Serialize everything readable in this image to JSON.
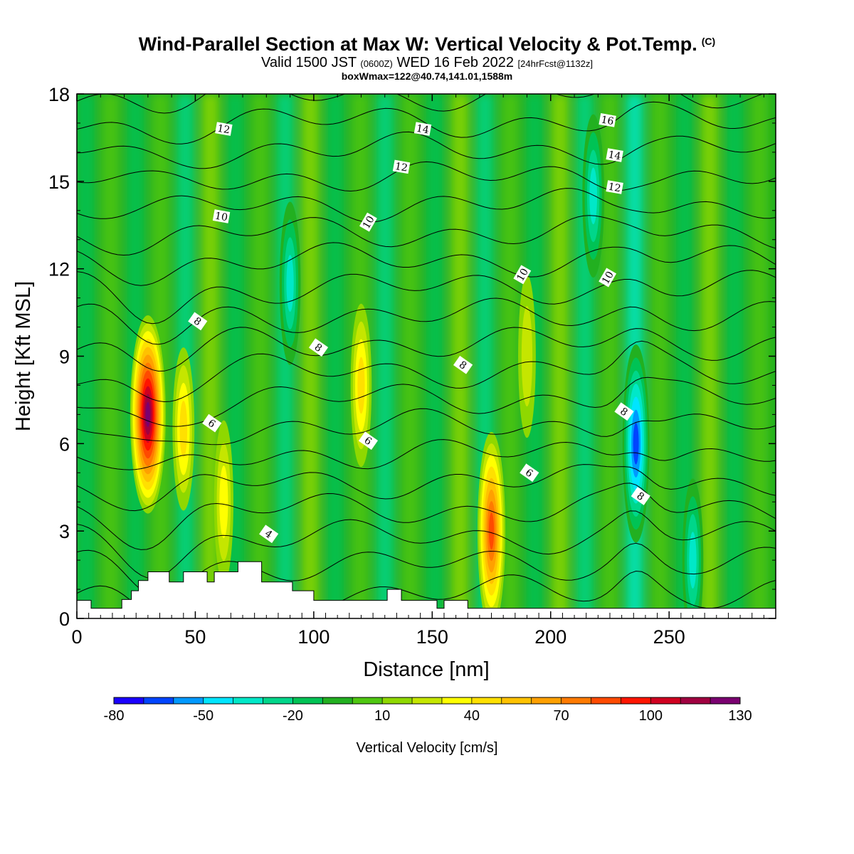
{
  "header": {
    "title": "Wind-Parallel Section at Max W: Vertical Velocity & Pot.Temp.",
    "title_mark": "(C)",
    "valid_prefix": "Valid 1500 JST",
    "valid_utc": "(0600Z)",
    "valid_date": "WED 16 Feb 2022",
    "forecast": "[24hrFcst@1132z]",
    "box_info": "boxWmax=122@40.74,141.01,1588m"
  },
  "chart_data": {
    "type": "heatmap",
    "xlabel": "Distance [nm]",
    "ylabel": "Height [Kft MSL]",
    "xlim": [
      0,
      295
    ],
    "ylim": [
      0,
      18
    ],
    "x_ticks": [
      0,
      50,
      100,
      150,
      200,
      250
    ],
    "y_ticks": [
      0,
      3,
      6,
      9,
      12,
      15,
      18
    ],
    "colorbar": {
      "label": "Vertical Velocity [cm/s]",
      "ticks": [
        -80,
        -50,
        -20,
        10,
        40,
        70,
        100,
        130
      ],
      "bins": [
        -80,
        -70,
        -60,
        -50,
        -40,
        -30,
        -20,
        -10,
        0,
        10,
        20,
        30,
        40,
        50,
        60,
        70,
        80,
        90,
        100,
        110,
        120,
        130
      ],
      "colors": [
        "#1a00ff",
        "#0044ff",
        "#0099ff",
        "#00e5ff",
        "#00e8c8",
        "#00d68a",
        "#00c355",
        "#22b020",
        "#4fc710",
        "#8fd800",
        "#c5e600",
        "#ffff00",
        "#ffe000",
        "#ffc200",
        "#ffa000",
        "#ff7a00",
        "#ff4a00",
        "#ff1500",
        "#d00020",
        "#a00040",
        "#7a0070"
      ]
    },
    "terrain": [
      [
        0,
        0.62
      ],
      [
        6,
        0.62
      ],
      [
        6,
        0.35
      ],
      [
        19,
        0.35
      ],
      [
        19,
        0.65
      ],
      [
        23,
        0.65
      ],
      [
        23,
        0.95
      ],
      [
        26,
        0.95
      ],
      [
        26,
        1.3
      ],
      [
        30,
        1.3
      ],
      [
        30,
        1.6
      ],
      [
        39,
        1.6
      ],
      [
        39,
        1.25
      ],
      [
        45,
        1.25
      ],
      [
        45,
        1.6
      ],
      [
        55,
        1.6
      ],
      [
        55,
        1.25
      ],
      [
        58,
        1.25
      ],
      [
        58,
        1.6
      ],
      [
        68,
        1.6
      ],
      [
        68,
        1.95
      ],
      [
        78,
        1.95
      ],
      [
        78,
        1.25
      ],
      [
        91,
        1.25
      ],
      [
        91,
        0.95
      ],
      [
        100,
        0.95
      ],
      [
        100,
        0.62
      ],
      [
        131,
        0.62
      ],
      [
        131,
        1.0
      ],
      [
        137,
        1.0
      ],
      [
        137,
        0.62
      ],
      [
        152,
        0.62
      ],
      [
        152,
        0.35
      ],
      [
        155,
        0.35
      ],
      [
        155,
        0.62
      ],
      [
        165,
        0.62
      ],
      [
        165,
        0.35
      ],
      [
        295,
        0.35
      ]
    ],
    "features": [
      {
        "x": 30,
        "y": 7.0,
        "value": 125
      },
      {
        "x": 45,
        "y": 6.5,
        "value": 45
      },
      {
        "x": 62,
        "y": 4.0,
        "value": 30
      },
      {
        "x": 120,
        "y": 8.0,
        "value": 40
      },
      {
        "x": 175,
        "y": 3.0,
        "value": 80
      },
      {
        "x": 236,
        "y": 6.0,
        "value": -75
      },
      {
        "x": 218,
        "y": 14.5,
        "value": -45
      },
      {
        "x": 90,
        "y": 11.5,
        "value": -40
      },
      {
        "x": 260,
        "y": 2.0,
        "value": -40
      },
      {
        "x": 190,
        "y": 9.0,
        "value": 20
      }
    ],
    "isentropes": [
      {
        "value": 4,
        "label_x": 81,
        "label_y": 2.9
      },
      {
        "value": 6,
        "label_x": 57,
        "label_y": 6.7
      },
      {
        "value": 6,
        "label_x": 123,
        "label_y": 6.1
      },
      {
        "value": 6,
        "label_x": 191,
        "label_y": 5.0
      },
      {
        "value": 8,
        "label_x": 51,
        "label_y": 10.2
      },
      {
        "value": 8,
        "label_x": 102,
        "label_y": 9.3
      },
      {
        "value": 8,
        "label_x": 163,
        "label_y": 8.7
      },
      {
        "value": 8,
        "label_x": 231,
        "label_y": 7.1
      },
      {
        "value": 8,
        "label_x": 238,
        "label_y": 4.2
      },
      {
        "value": 10,
        "label_x": 61,
        "label_y": 13.8
      },
      {
        "value": 10,
        "label_x": 123,
        "label_y": 13.6
      },
      {
        "value": 10,
        "label_x": 188,
        "label_y": 11.8
      },
      {
        "value": 10,
        "label_x": 224,
        "label_y": 11.7
      },
      {
        "value": 12,
        "label_x": 62,
        "label_y": 16.8
      },
      {
        "value": 12,
        "label_x": 137,
        "label_y": 15.5
      },
      {
        "value": 12,
        "label_x": 227,
        "label_y": 14.8
      },
      {
        "value": 14,
        "label_x": 146,
        "label_y": 16.8
      },
      {
        "value": 14,
        "label_x": 227,
        "label_y": 15.9
      },
      {
        "value": 16,
        "label_x": 224,
        "label_y": 17.1
      }
    ]
  }
}
